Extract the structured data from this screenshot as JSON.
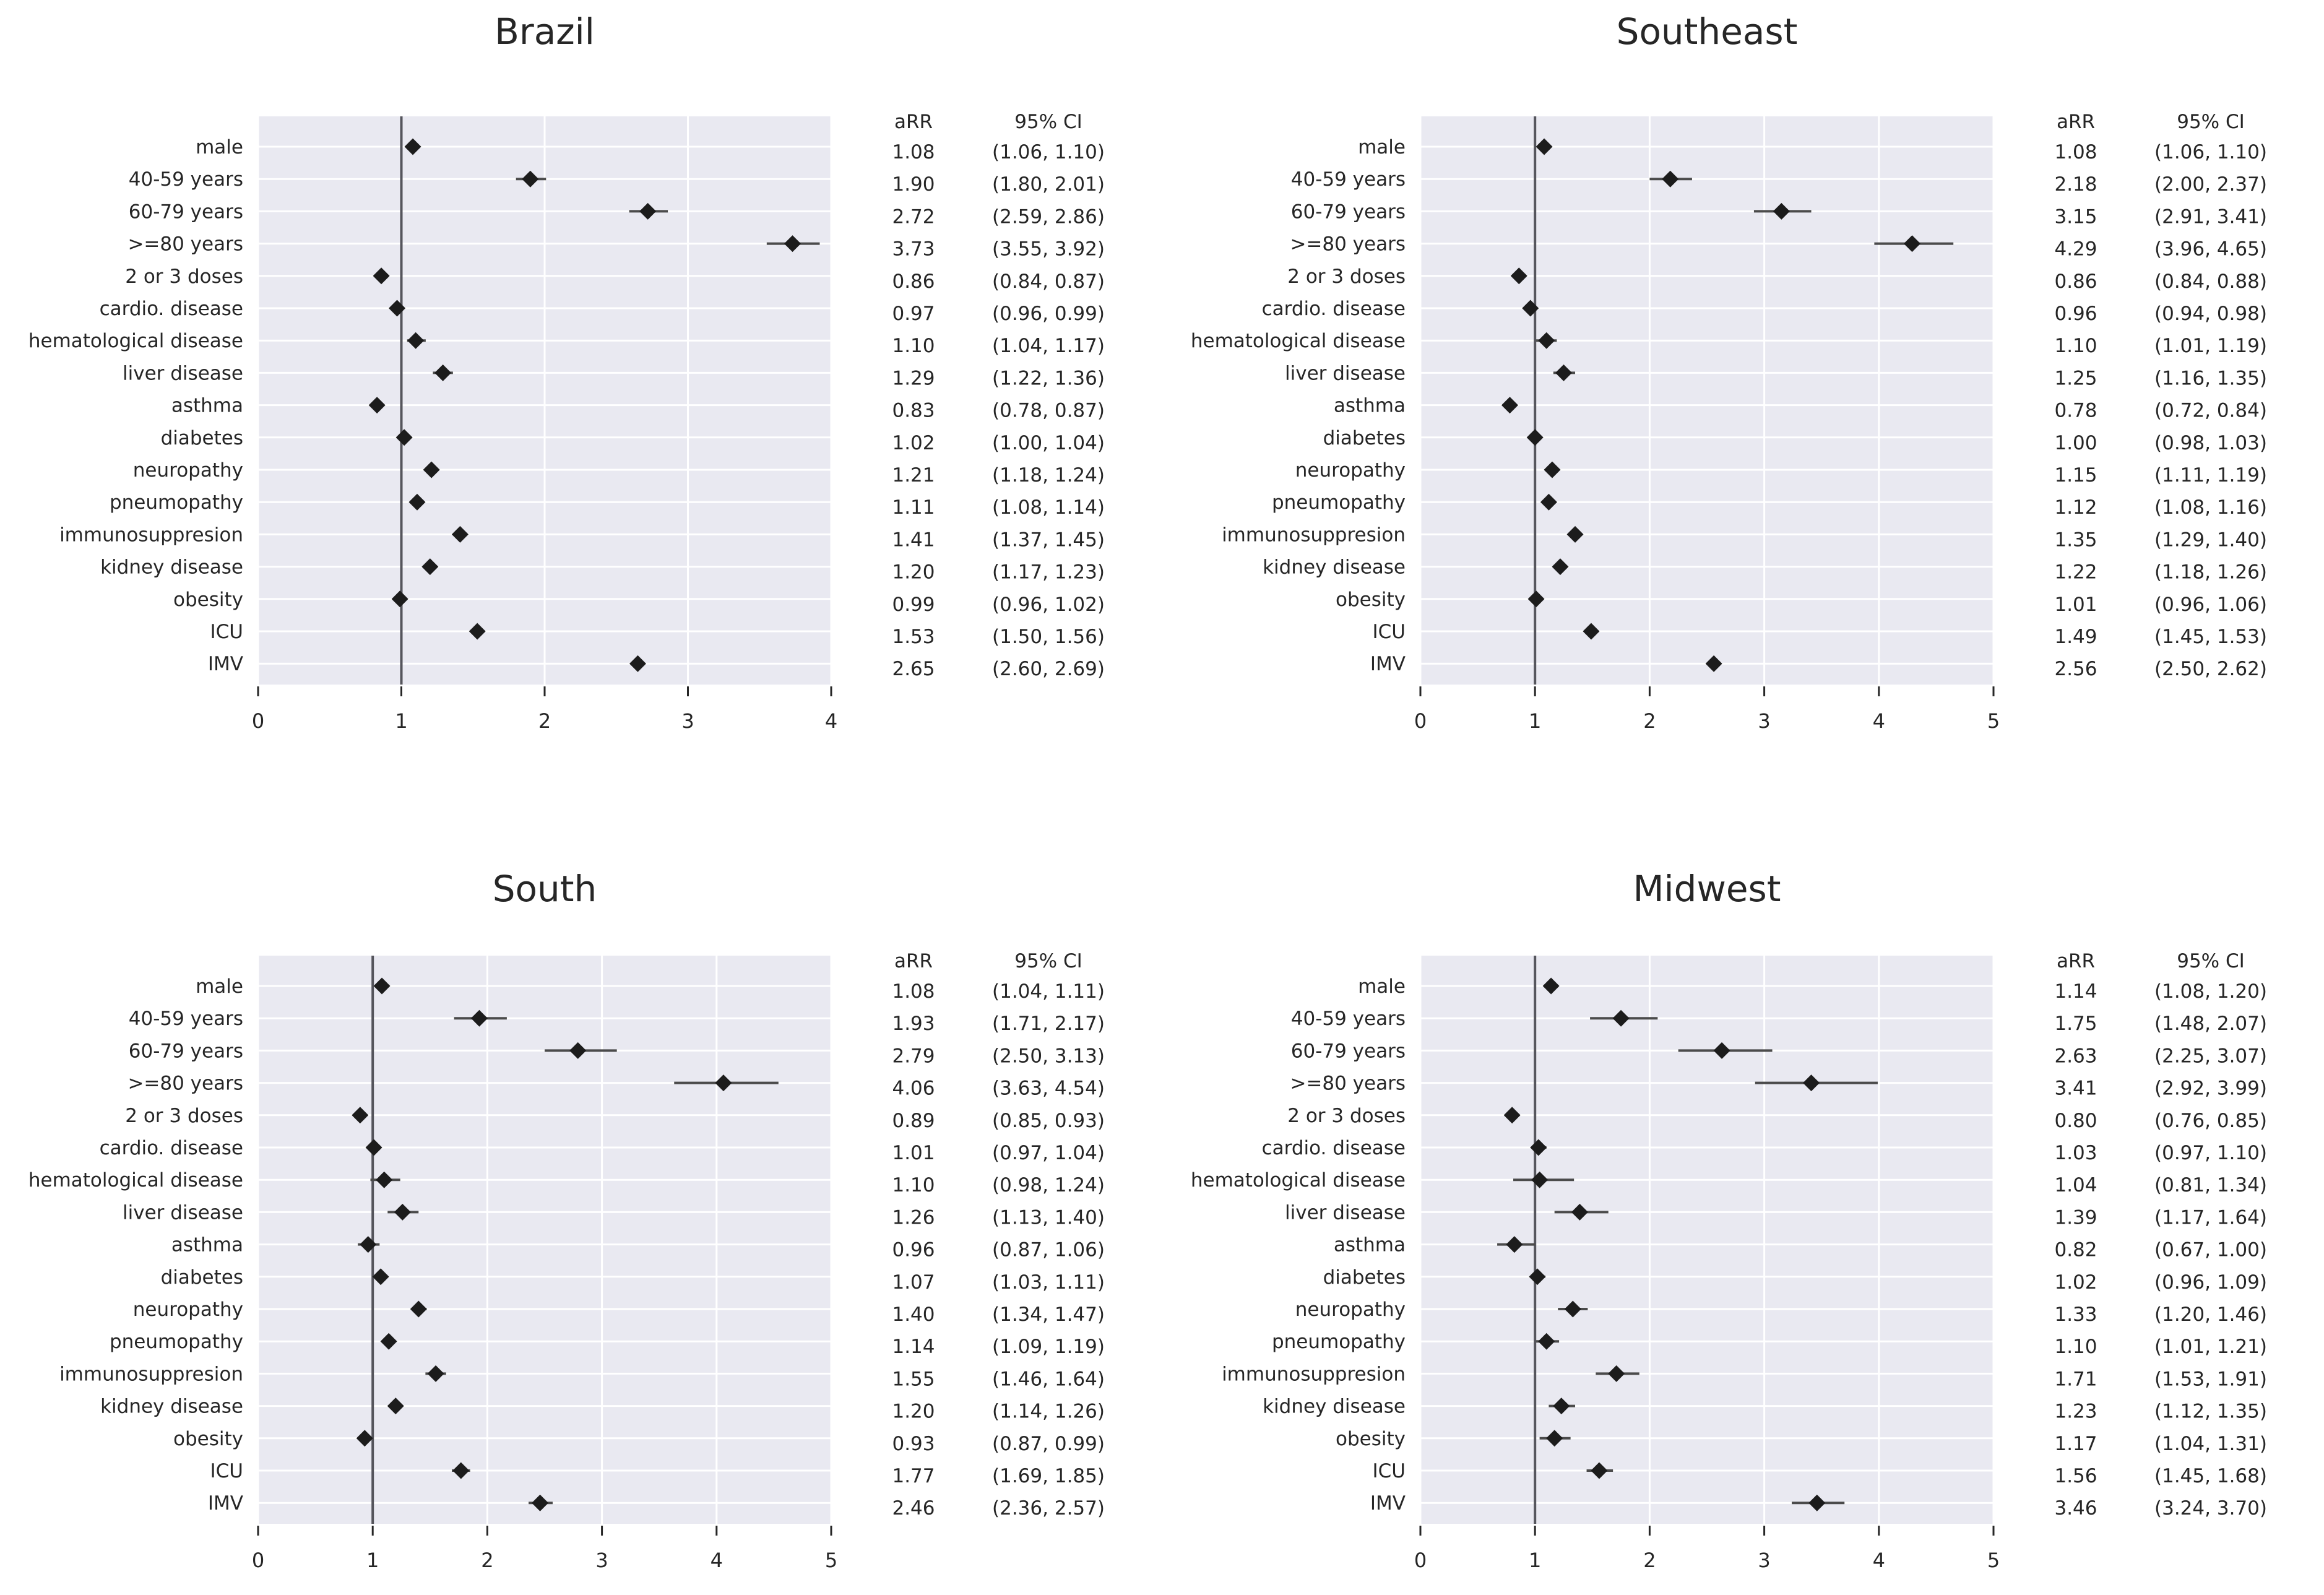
{
  "figure": {
    "background": "#ffffff",
    "column_headers": {
      "arr": "aRR",
      "ci": "95% CI"
    }
  },
  "styles": {
    "plot_bg": "#e9e9f1",
    "grid_color": "#ffffff",
    "marker_color": "#1c1c1c",
    "ci_color": "#4b4b4b",
    "refline_color": "#55555c",
    "text_color": "#262626",
    "tick_color": "#262626"
  },
  "chart_data": [
    {
      "type": "scatter",
      "subtype": "forest-plot",
      "title": "Brazil",
      "xlabel": "",
      "ylabel": "",
      "xlim": [
        0,
        4
      ],
      "xticks": [
        0,
        1,
        2,
        3,
        4
      ],
      "reference_line_x": 1,
      "grid": true,
      "legend_position": "none",
      "categories": [
        "male",
        "40-59 years",
        "60-79 years",
        ">=80 years",
        "2 or 3 doses",
        "cardio. disease",
        "hematological disease",
        "liver disease",
        "asthma",
        "diabetes",
        "neuropathy",
        "pneumopathy",
        "immunosuppresion",
        "kidney disease",
        "obesity",
        "ICU",
        "IMV"
      ],
      "series": [
        {
          "name": "aRR",
          "values": [
            1.08,
            1.9,
            2.72,
            3.73,
            0.86,
            0.97,
            1.1,
            1.29,
            0.83,
            1.02,
            1.21,
            1.11,
            1.41,
            1.2,
            0.99,
            1.53,
            2.65
          ]
        },
        {
          "name": "ci_low",
          "values": [
            1.06,
            1.8,
            2.59,
            3.55,
            0.84,
            0.96,
            1.04,
            1.22,
            0.78,
            1.0,
            1.18,
            1.08,
            1.37,
            1.17,
            0.96,
            1.5,
            2.6
          ]
        },
        {
          "name": "ci_high",
          "values": [
            1.1,
            2.01,
            2.86,
            3.92,
            0.87,
            0.99,
            1.17,
            1.36,
            0.87,
            1.04,
            1.24,
            1.14,
            1.45,
            1.23,
            1.02,
            1.56,
            2.69
          ]
        }
      ]
    },
    {
      "type": "scatter",
      "subtype": "forest-plot",
      "title": "Southeast",
      "xlabel": "",
      "ylabel": "",
      "xlim": [
        0,
        5
      ],
      "xticks": [
        0,
        1,
        2,
        3,
        4,
        5
      ],
      "reference_line_x": 1,
      "grid": true,
      "legend_position": "none",
      "categories": [
        "male",
        "40-59 years",
        "60-79 years",
        ">=80 years",
        "2 or 3 doses",
        "cardio. disease",
        "hematological disease",
        "liver disease",
        "asthma",
        "diabetes",
        "neuropathy",
        "pneumopathy",
        "immunosuppresion",
        "kidney disease",
        "obesity",
        "ICU",
        "IMV"
      ],
      "series": [
        {
          "name": "aRR",
          "values": [
            1.08,
            2.18,
            3.15,
            4.29,
            0.86,
            0.96,
            1.1,
            1.25,
            0.78,
            1.0,
            1.15,
            1.12,
            1.35,
            1.22,
            1.01,
            1.49,
            2.56
          ]
        },
        {
          "name": "ci_low",
          "values": [
            1.06,
            2.0,
            2.91,
            3.96,
            0.84,
            0.94,
            1.01,
            1.16,
            0.72,
            0.98,
            1.11,
            1.08,
            1.29,
            1.18,
            0.96,
            1.45,
            2.5
          ]
        },
        {
          "name": "ci_high",
          "values": [
            1.1,
            2.37,
            3.41,
            4.65,
            0.88,
            0.98,
            1.19,
            1.35,
            0.84,
            1.03,
            1.19,
            1.16,
            1.4,
            1.26,
            1.06,
            1.53,
            2.62
          ]
        }
      ]
    },
    {
      "type": "scatter",
      "subtype": "forest-plot",
      "title": "South",
      "xlabel": "",
      "ylabel": "",
      "xlim": [
        0,
        5
      ],
      "xticks": [
        0,
        1,
        2,
        3,
        4,
        5
      ],
      "reference_line_x": 1,
      "grid": true,
      "legend_position": "none",
      "categories": [
        "male",
        "40-59 years",
        "60-79 years",
        ">=80 years",
        "2 or 3 doses",
        "cardio. disease",
        "hematological disease",
        "liver disease",
        "asthma",
        "diabetes",
        "neuropathy",
        "pneumopathy",
        "immunosuppresion",
        "kidney disease",
        "obesity",
        "ICU",
        "IMV"
      ],
      "series": [
        {
          "name": "aRR",
          "values": [
            1.08,
            1.93,
            2.79,
            4.06,
            0.89,
            1.01,
            1.1,
            1.26,
            0.96,
            1.07,
            1.4,
            1.14,
            1.55,
            1.2,
            0.93,
            1.77,
            2.46
          ]
        },
        {
          "name": "ci_low",
          "values": [
            1.04,
            1.71,
            2.5,
            3.63,
            0.85,
            0.97,
            0.98,
            1.13,
            0.87,
            1.03,
            1.34,
            1.09,
            1.46,
            1.14,
            0.87,
            1.69,
            2.36
          ]
        },
        {
          "name": "ci_high",
          "values": [
            1.11,
            2.17,
            3.13,
            4.54,
            0.93,
            1.04,
            1.24,
            1.4,
            1.06,
            1.11,
            1.47,
            1.19,
            1.64,
            1.26,
            0.99,
            1.85,
            2.57
          ]
        }
      ]
    },
    {
      "type": "scatter",
      "subtype": "forest-plot",
      "title": "Midwest",
      "xlabel": "",
      "ylabel": "",
      "xlim": [
        0,
        5
      ],
      "xticks": [
        0,
        1,
        2,
        3,
        4,
        5
      ],
      "reference_line_x": 1,
      "grid": true,
      "legend_position": "none",
      "categories": [
        "male",
        "40-59 years",
        "60-79 years",
        ">=80 years",
        "2 or 3 doses",
        "cardio. disease",
        "hematological disease",
        "liver disease",
        "asthma",
        "diabetes",
        "neuropathy",
        "pneumopathy",
        "immunosuppresion",
        "kidney disease",
        "obesity",
        "ICU",
        "IMV"
      ],
      "series": [
        {
          "name": "aRR",
          "values": [
            1.14,
            1.75,
            2.63,
            3.41,
            0.8,
            1.03,
            1.04,
            1.39,
            0.82,
            1.02,
            1.33,
            1.1,
            1.71,
            1.23,
            1.17,
            1.56,
            3.46
          ]
        },
        {
          "name": "ci_low",
          "values": [
            1.08,
            1.48,
            2.25,
            2.92,
            0.76,
            0.97,
            0.81,
            1.17,
            0.67,
            0.96,
            1.2,
            1.01,
            1.53,
            1.12,
            1.04,
            1.45,
            3.24
          ]
        },
        {
          "name": "ci_high",
          "values": [
            1.2,
            2.07,
            3.07,
            3.99,
            0.85,
            1.1,
            1.34,
            1.64,
            1.0,
            1.09,
            1.46,
            1.21,
            1.91,
            1.35,
            1.31,
            1.68,
            3.7
          ]
        }
      ]
    }
  ]
}
